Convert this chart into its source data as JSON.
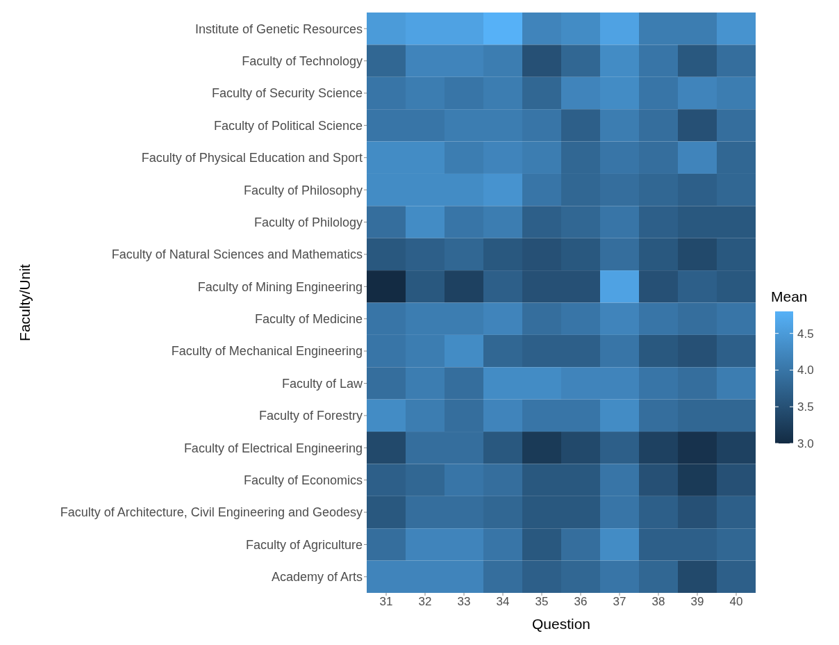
{
  "chart_data": {
    "type": "heatmap",
    "xlabel": "Question",
    "ylabel": "Faculty/Unit",
    "clabel": "Mean",
    "categories": [
      "31",
      "32",
      "33",
      "34",
      "35",
      "36",
      "37",
      "38",
      "39",
      "40"
    ],
    "y_categories": [
      "Institute of Genetic Resources",
      "Faculty of Technology",
      "Faculty of Security Science",
      "Faculty of Political Science",
      "Faculty of Physical Education and Sport",
      "Faculty of Philosophy",
      "Faculty of Philology",
      "Faculty of Natural Sciences and Mathematics",
      "Faculty of Mining Engineering",
      "Faculty of Medicine",
      "Faculty of Mechanical Engineering",
      "Faculty of Law",
      "Faculty of Forestry",
      "Faculty of Electrical Engineering",
      "Faculty of Economics",
      "Faculty of Architecture, Civil Engineering and Geodesy",
      "Faculty of Agriculture",
      "Academy of Arts"
    ],
    "cells": [
      [
        4.5,
        4.6,
        4.6,
        4.8,
        4.2,
        4.3,
        4.6,
        4.1,
        4.1,
        4.4
      ],
      [
        3.8,
        4.2,
        4.2,
        4.1,
        3.5,
        3.8,
        4.3,
        4.0,
        3.6,
        3.9
      ],
      [
        4.0,
        4.1,
        4.0,
        4.1,
        3.8,
        4.2,
        4.3,
        4.0,
        4.2,
        4.1
      ],
      [
        4.0,
        4.0,
        4.1,
        4.1,
        4.0,
        3.7,
        4.1,
        3.9,
        3.5,
        3.9
      ],
      [
        4.3,
        4.3,
        4.1,
        4.2,
        4.1,
        3.8,
        4.0,
        3.9,
        4.2,
        3.8
      ],
      [
        4.3,
        4.3,
        4.3,
        4.4,
        4.0,
        3.8,
        3.9,
        3.8,
        3.7,
        3.8
      ],
      [
        3.9,
        4.3,
        4.0,
        4.1,
        3.7,
        3.8,
        4.0,
        3.7,
        3.6,
        3.6
      ],
      [
        3.6,
        3.7,
        3.8,
        3.6,
        3.5,
        3.6,
        3.9,
        3.6,
        3.4,
        3.6
      ],
      [
        3.0,
        3.6,
        3.3,
        3.7,
        3.5,
        3.5,
        4.6,
        3.5,
        3.7,
        3.6
      ],
      [
        4.0,
        4.1,
        4.1,
        4.2,
        3.9,
        4.0,
        4.2,
        4.0,
        3.9,
        4.0
      ],
      [
        4.0,
        4.1,
        4.3,
        3.8,
        3.7,
        3.7,
        4.0,
        3.6,
        3.5,
        3.7
      ],
      [
        3.9,
        4.1,
        3.9,
        4.3,
        4.3,
        4.2,
        4.2,
        4.0,
        3.9,
        4.1
      ],
      [
        4.3,
        4.1,
        3.9,
        4.2,
        4.0,
        4.0,
        4.3,
        3.9,
        3.8,
        3.8
      ],
      [
        3.4,
        3.9,
        3.9,
        3.6,
        3.2,
        3.4,
        3.7,
        3.3,
        3.1,
        3.3
      ],
      [
        3.7,
        3.8,
        4.0,
        3.9,
        3.6,
        3.6,
        4.0,
        3.5,
        3.2,
        3.5
      ],
      [
        3.6,
        3.9,
        3.9,
        3.8,
        3.6,
        3.6,
        4.0,
        3.7,
        3.5,
        3.7
      ],
      [
        3.9,
        4.2,
        4.2,
        4.0,
        3.6,
        3.9,
        4.3,
        3.7,
        3.7,
        3.8
      ],
      [
        4.2,
        4.2,
        4.2,
        3.9,
        3.7,
        3.8,
        4.0,
        3.8,
        3.4,
        3.7
      ]
    ],
    "clim": [
      3.0,
      4.8
    ],
    "cticks": [
      {
        "value": 3,
        "label": "3.0"
      },
      {
        "value": 3.5,
        "label": "3.5"
      },
      {
        "value": 4,
        "label": "4.0"
      },
      {
        "value": 4.5,
        "label": "4.5"
      }
    ]
  }
}
